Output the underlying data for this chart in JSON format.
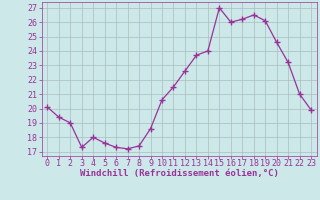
{
  "x": [
    0,
    1,
    2,
    3,
    4,
    5,
    6,
    7,
    8,
    9,
    10,
    11,
    12,
    13,
    14,
    15,
    16,
    17,
    18,
    19,
    20,
    21,
    22,
    23
  ],
  "y": [
    20.1,
    19.4,
    19.0,
    17.3,
    18.0,
    17.6,
    17.3,
    17.2,
    17.4,
    18.6,
    20.6,
    21.5,
    22.6,
    23.7,
    24.0,
    27.0,
    26.0,
    26.2,
    26.5,
    26.1,
    24.6,
    23.2,
    21.0,
    19.9
  ],
  "line_color": "#993399",
  "marker": "+",
  "marker_size": 4,
  "bg_color": "#cce8e8",
  "grid_color": "#aabcbc",
  "xlabel": "Windchill (Refroidissement éolien,°C)",
  "ylabel_ticks": [
    17,
    18,
    19,
    20,
    21,
    22,
    23,
    24,
    25,
    26,
    27
  ],
  "ylim": [
    16.7,
    27.4
  ],
  "xlim": [
    -0.5,
    23.5
  ],
  "xticks": [
    0,
    1,
    2,
    3,
    4,
    5,
    6,
    7,
    8,
    9,
    10,
    11,
    12,
    13,
    14,
    15,
    16,
    17,
    18,
    19,
    20,
    21,
    22,
    23
  ],
  "label_fontsize": 6.5,
  "tick_fontsize": 6.0
}
